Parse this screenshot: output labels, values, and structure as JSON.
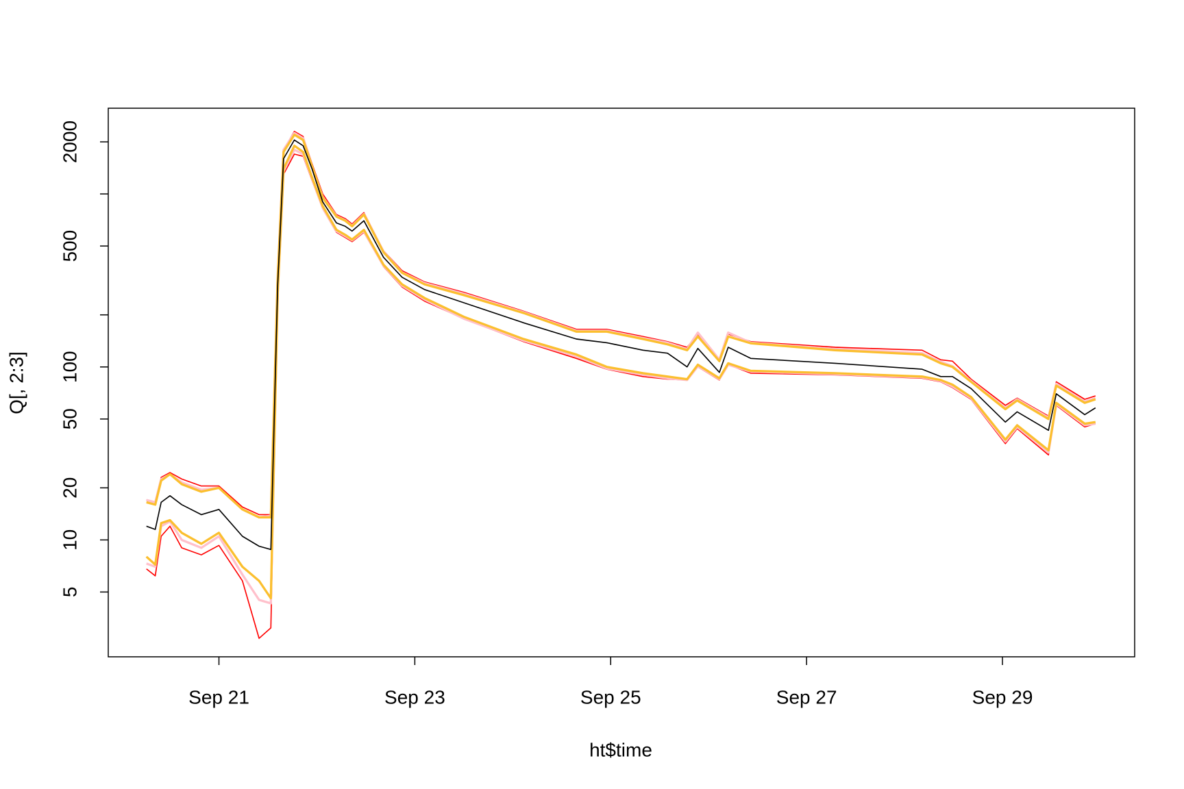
{
  "chart_data": {
    "type": "line",
    "xlabel": "ht$time",
    "ylabel": "Q[, 2:3]",
    "log_y": true,
    "grid": false,
    "x": [
      20.26,
      20.35,
      20.41,
      20.5,
      20.62,
      20.82,
      21.0,
      21.24,
      21.41,
      21.53,
      21.6,
      21.66,
      21.77,
      21.86,
      21.95,
      22.06,
      22.2,
      22.29,
      22.36,
      22.48,
      22.68,
      22.87,
      23.1,
      23.5,
      24.11,
      24.65,
      24.96,
      25.33,
      25.58,
      25.78,
      25.89,
      26.11,
      26.2,
      26.43,
      27.29,
      28.18,
      28.37,
      28.49,
      28.68,
      29.03,
      29.15,
      29.47,
      29.55,
      29.84,
      29.95
    ],
    "series": [
      {
        "color": "#ff0000",
        "width": 1.5,
        "values": [
          17,
          16.5,
          23,
          24.5,
          22.5,
          20.5,
          20.5,
          15.5,
          14,
          14,
          350,
          1800,
          2300,
          2150,
          1500,
          1000,
          760,
          720,
          670,
          780,
          470,
          360,
          310,
          270,
          210,
          165,
          165,
          150,
          140,
          130,
          155,
          110,
          155,
          140,
          130,
          125,
          110,
          108,
          85,
          60,
          66,
          52,
          82,
          65,
          68
        ]
      },
      {
        "color": "#ff0000",
        "width": 1.5,
        "values": [
          6.8,
          6.2,
          10.5,
          12,
          9,
          8.2,
          9.3,
          5.8,
          2.7,
          3.1,
          260,
          1300,
          1700,
          1650,
          1200,
          820,
          600,
          560,
          530,
          600,
          380,
          290,
          240,
          190,
          140,
          112,
          97,
          88,
          85,
          84,
          100,
          84,
          103,
          92,
          90,
          86,
          82,
          76,
          65,
          36,
          44,
          31,
          60,
          45,
          47
        ]
      },
      {
        "color": "#ffc0cb",
        "width": 3,
        "values": [
          17,
          16.5,
          22.5,
          24,
          21.5,
          19.5,
          20,
          15,
          13.5,
          13.8,
          340,
          1800,
          2250,
          2100,
          1450,
          960,
          745,
          705,
          655,
          765,
          465,
          352,
          305,
          265,
          207,
          162,
          162,
          147,
          138,
          127,
          158,
          110,
          158,
          138,
          127,
          120,
          107,
          101,
          83,
          58,
          65,
          51,
          80,
          63,
          66
        ]
      },
      {
        "color": "#ffc0cb",
        "width": 3,
        "values": [
          7.3,
          7,
          12,
          12.8,
          10,
          9,
          10.5,
          6.3,
          4.5,
          4.3,
          265,
          1350,
          1800,
          1700,
          1230,
          830,
          610,
          570,
          540,
          610,
          385,
          295,
          245,
          190,
          142,
          115,
          98,
          90,
          86,
          84,
          101,
          85,
          103,
          94,
          91,
          87,
          83,
          77,
          66,
          37,
          45,
          32,
          61,
          46,
          47
        ]
      },
      {
        "color": "#fbbf2e",
        "width": 3,
        "values": [
          16.5,
          16,
          22,
          24,
          21,
          19,
          20,
          15,
          13.5,
          13.5,
          330,
          1750,
          2200,
          2050,
          1450,
          950,
          740,
          700,
          650,
          760,
          460,
          350,
          300,
          260,
          205,
          160,
          160,
          145,
          135,
          125,
          150,
          108,
          150,
          137,
          125,
          118,
          105,
          100,
          82,
          57,
          64,
          50,
          78,
          62,
          65
        ]
      },
      {
        "color": "#fbbf2e",
        "width": 3,
        "values": [
          8,
          7.2,
          12.5,
          13,
          11,
          9.5,
          11,
          7,
          5.8,
          4.6,
          270,
          1400,
          1900,
          1750,
          1250,
          850,
          620,
          580,
          545,
          620,
          390,
          300,
          250,
          195,
          145,
          118,
          100,
          92,
          88,
          85,
          103,
          86,
          105,
          95,
          92,
          88,
          84,
          79,
          67,
          38,
          46,
          33,
          62,
          47,
          48
        ]
      },
      {
        "color": "#000000",
        "width": 1.5,
        "values": [
          12,
          11.5,
          16.5,
          18,
          16,
          14,
          15,
          10.5,
          9.2,
          8.8,
          300,
          1600,
          2050,
          1900,
          1400,
          900,
          680,
          650,
          610,
          700,
          430,
          330,
          280,
          235,
          180,
          145,
          138,
          125,
          120,
          100,
          128,
          93,
          130,
          112,
          105,
          97,
          88,
          88,
          75,
          48,
          55,
          43,
          70,
          53,
          58
        ]
      }
    ],
    "xlim": [
      19.87,
      30.35
    ],
    "xticks": [
      {
        "value": 21,
        "label": "Sep 21"
      },
      {
        "value": 23,
        "label": "Sep 23"
      },
      {
        "value": 25,
        "label": "Sep 25"
      },
      {
        "value": 27,
        "label": "Sep 27"
      },
      {
        "value": 29,
        "label": "Sep 29"
      }
    ],
    "ylim": [
      2.11,
      3130
    ],
    "yticks": [
      5,
      10,
      20,
      50,
      100,
      500,
      2000
    ],
    "y_unlabeled_ticks": [
      200,
      1000
    ]
  }
}
